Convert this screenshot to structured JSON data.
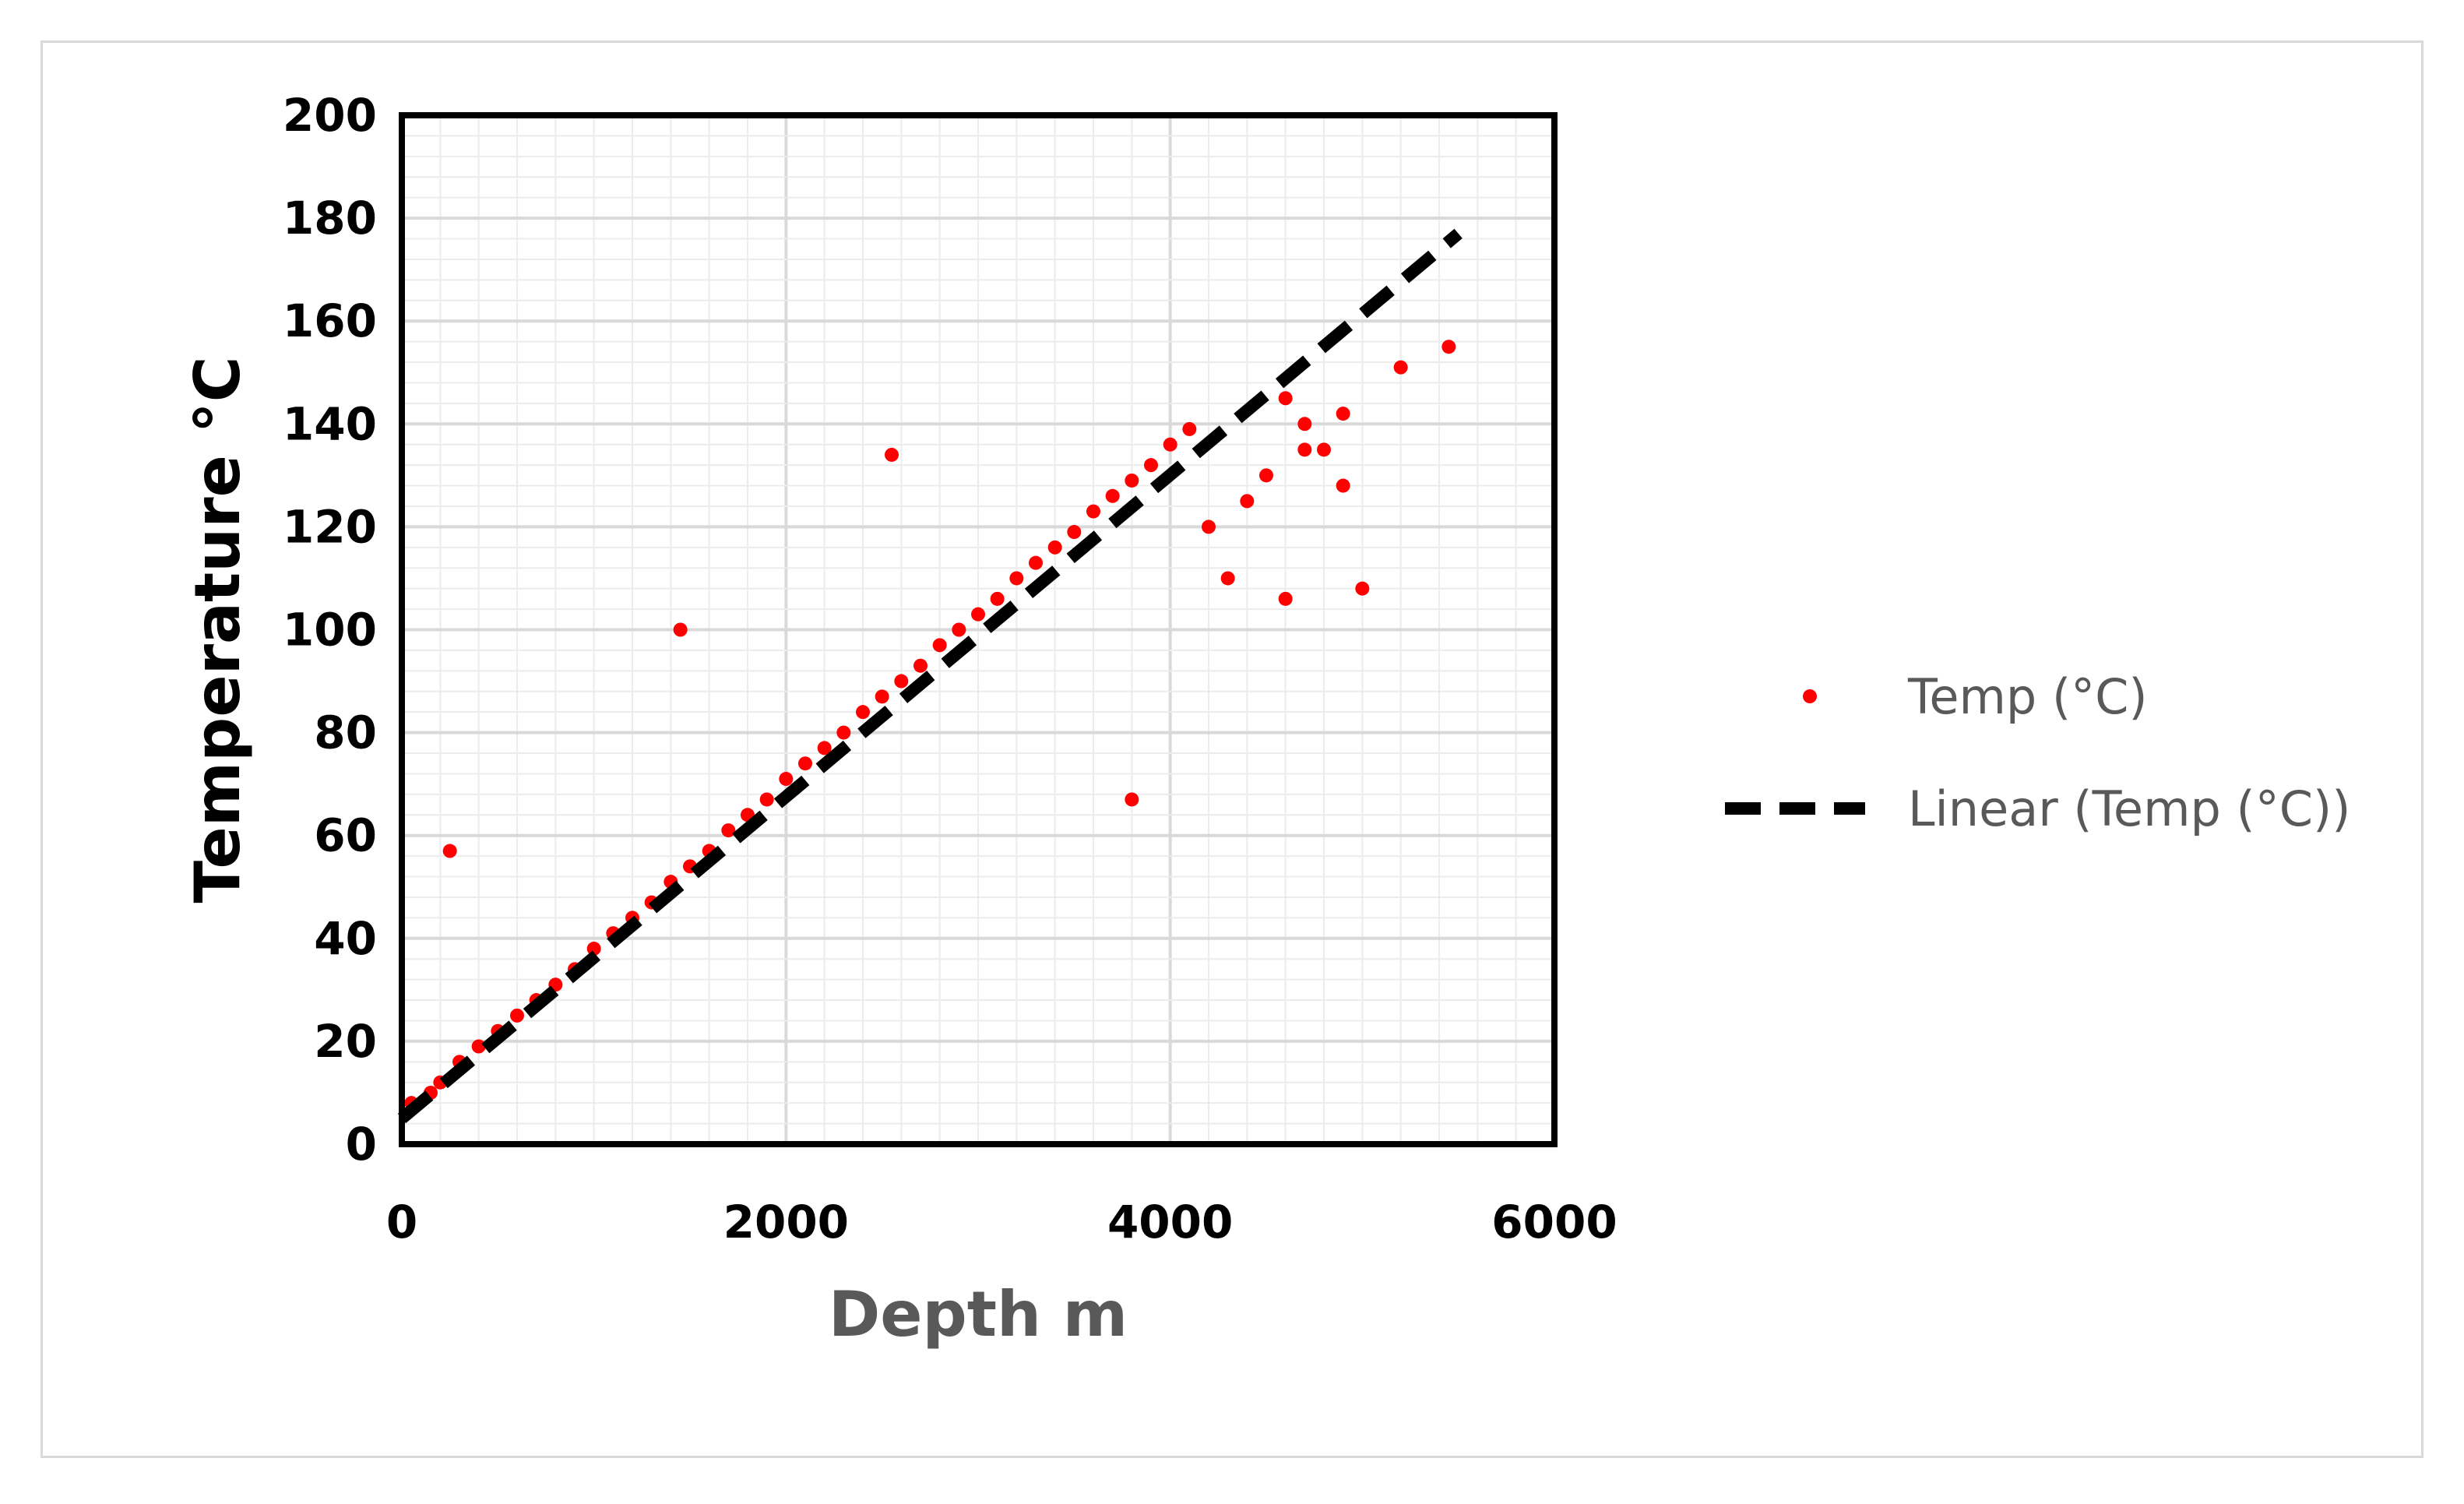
{
  "chart_data": {
    "type": "scatter",
    "title": "",
    "xlabel": "Depth m",
    "ylabel": "Temperature °C",
    "xlim": [
      0,
      6000
    ],
    "ylim": [
      0,
      200
    ],
    "x_ticks": [
      "0",
      "2000",
      "4000",
      "6000"
    ],
    "y_ticks": [
      "0",
      "20",
      "40",
      "60",
      "80",
      "100",
      "120",
      "140",
      "160",
      "180",
      "200"
    ],
    "grid": true,
    "legend_position": "right",
    "series": [
      {
        "name": "Temp (°C)",
        "kind": "scatter",
        "color": "#ff0000",
        "x": [
          50,
          150,
          200,
          300,
          400,
          500,
          600,
          700,
          800,
          900,
          1000,
          1100,
          1200,
          1300,
          1400,
          1500,
          1600,
          1700,
          1800,
          1900,
          2000,
          2100,
          2200,
          2300,
          2400,
          2500,
          2600,
          2700,
          2800,
          2900,
          3000,
          3100,
          3200,
          3300,
          3400,
          3500,
          3600,
          3700,
          3800,
          3900,
          4000,
          4100,
          4200,
          4300,
          4400,
          4500,
          4600,
          4700,
          4800,
          4900,
          5000,
          5200,
          5450,
          2550,
          1450,
          250,
          3800,
          4600,
          4700,
          4900
        ],
        "y": [
          8,
          10,
          12,
          16,
          19,
          22,
          25,
          28,
          31,
          34,
          38,
          41,
          44,
          47,
          51,
          54,
          57,
          61,
          64,
          67,
          71,
          74,
          77,
          80,
          84,
          87,
          90,
          93,
          97,
          100,
          103,
          106,
          110,
          113,
          116,
          119,
          123,
          126,
          129,
          132,
          136,
          139,
          120,
          110,
          125,
          130,
          145,
          140,
          135,
          142,
          108,
          151,
          155,
          134,
          100,
          57,
          67,
          106,
          135,
          128
        ]
      },
      {
        "name": "Linear (Temp (°C))",
        "kind": "trendline",
        "color": "#000000",
        "dash": "dashed",
        "x": [
          0,
          5500
        ],
        "y": [
          5,
          177
        ]
      }
    ]
  },
  "colors": {
    "points": "#ff0000",
    "trend": "#000000",
    "grid": "#d9d9d9",
    "minor_grid": "#ececec",
    "axis_title_y": "#000000",
    "axis_title_x": "#595959",
    "legend_text": "#595959"
  }
}
